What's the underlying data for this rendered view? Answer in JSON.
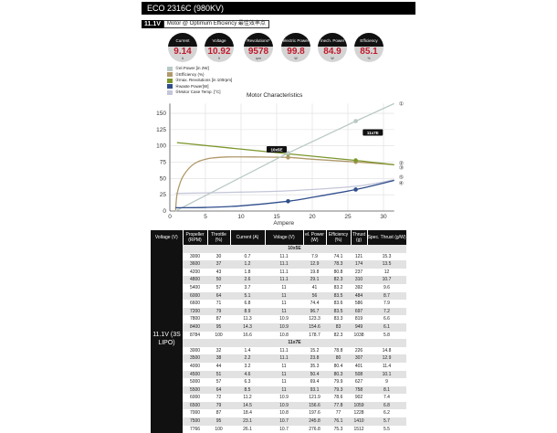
{
  "title": "ECO 2316C (980KV)",
  "subheader": {
    "voltage": "11.1V",
    "text": "Motor @ Optimum Efficiency  最佳效率点"
  },
  "gauges": [
    {
      "label": "Current",
      "value": "9.14",
      "unit": "A"
    },
    {
      "label": "Voltage",
      "value": "10.92",
      "unit": "V"
    },
    {
      "label": "Revolutions*",
      "value": "9578",
      "unit": "rpm"
    },
    {
      "label": "electric Power",
      "value": "99.8",
      "unit": "W"
    },
    {
      "label": "mech. Power",
      "value": "84.9",
      "unit": "W"
    },
    {
      "label": "Efficiency",
      "value": "85.1",
      "unit": "%"
    }
  ],
  "chart_data": {
    "type": "line",
    "title": "Motor Characteristics",
    "xlabel": "Ampere",
    "xlim": [
      0,
      31.5
    ],
    "ylim": [
      0,
      165
    ],
    "xticks": [
      0,
      5,
      10,
      15,
      20,
      25,
      30
    ],
    "yticks": [
      0,
      25,
      50,
      75,
      100,
      125,
      150
    ],
    "grid": true,
    "legend_position": "top-left",
    "series": [
      {
        "name": "①el.Power [in 2W]",
        "marker": "①",
        "color": "#b9c9c5",
        "x": [
          0.8,
          16.6,
          26.1,
          31.5
        ],
        "y": [
          0,
          89,
          138,
          165
        ],
        "mx": [
          16.6,
          26.1
        ],
        "my": [
          89,
          138
        ]
      },
      {
        "name": "②Efficiency (%)",
        "marker": "②",
        "color": "#b0996a",
        "x": [
          0.8,
          1,
          1.5,
          2,
          3,
          4,
          5,
          6,
          8,
          12,
          16.6,
          20,
          26.1,
          31.5
        ],
        "y": [
          0,
          25,
          45,
          56,
          69,
          76,
          79.5,
          81.5,
          83,
          83,
          82.3,
          79.5,
          75.3,
          71
        ],
        "mx": [
          16.6,
          26.1
        ],
        "my": [
          82.3,
          75.3
        ]
      },
      {
        "name": "③max. Revolutions [in 100rpm]",
        "marker": "③",
        "color": "#7c962c",
        "x": [
          1,
          16.6,
          26.1,
          31.5
        ],
        "y": [
          105,
          87.8,
          77.7,
          71
        ],
        "mx": [
          16.6,
          26.1
        ],
        "my": [
          87.8,
          77.7
        ]
      },
      {
        "name": "④waste Power[W]",
        "marker": "④",
        "color": "#2f4e8c",
        "x": [
          0.8,
          5,
          10,
          16.6,
          20,
          26.1,
          31.5
        ],
        "y": [
          5,
          5.5,
          8,
          15,
          21,
          33,
          47
        ],
        "mx": [
          16.6,
          26.1
        ],
        "my": [
          15,
          33
        ]
      },
      {
        "name": "⑤Motor Case Temp. [°C]",
        "marker": "⑤",
        "color": "#c4c6d8",
        "x": [
          0.8,
          10,
          16.6,
          26.1,
          31.5
        ],
        "y": [
          27,
          29,
          31,
          38,
          48
        ],
        "mx": [],
        "my": []
      }
    ],
    "annotations": [
      {
        "text": "10x5E",
        "x": 15,
        "y": 94
      },
      {
        "text": "11x7E",
        "x": 28.5,
        "y": 120
      }
    ]
  },
  "table": {
    "headers": [
      "Voltage (V)",
      "Propeller (RPM)",
      "Throttle (%)",
      "Current (A)",
      "Volage (V)",
      "el. Power (W)",
      "Efficiency (%)",
      "Thrust (g)",
      "Spec. Thrust (g/W)"
    ],
    "voltage": "11.1V (3S LIPO)",
    "groups": [
      {
        "name": "10x5E",
        "rows": [
          [
            "3000",
            "30",
            "0.7",
            "11.1",
            "7.9",
            "74.1",
            "121",
            "15.3"
          ],
          [
            "3600",
            "37",
            "1.2",
            "11.1",
            "12.9",
            "78.3",
            "174",
            "13.5"
          ],
          [
            "4200",
            "43",
            "1.8",
            "11.1",
            "19.8",
            "80.8",
            "237",
            "12"
          ],
          [
            "4800",
            "50",
            "2.6",
            "11.1",
            "29.1",
            "82.3",
            "310",
            "10.7"
          ],
          [
            "5400",
            "57",
            "3.7",
            "11",
            "41",
            "83.2",
            "392",
            "9.6"
          ],
          [
            "6000",
            "64",
            "5.1",
            "11",
            "56",
            "83.5",
            "484",
            "8.7"
          ],
          [
            "6600",
            "71",
            "6.8",
            "11",
            "74.4",
            "83.6",
            "586",
            "7.9"
          ],
          [
            "7200",
            "79",
            "8.9",
            "11",
            "96.7",
            "83.5",
            "697",
            "7.2"
          ],
          [
            "7800",
            "87",
            "11.3",
            "10.9",
            "123.3",
            "83.3",
            "819",
            "6.6"
          ],
          [
            "8400",
            "95",
            "14.3",
            "10.9",
            "154.6",
            "83",
            "949",
            "6.1"
          ],
          [
            "8784",
            "100",
            "16.6",
            "10.8",
            "178.7",
            "82.3",
            "1038",
            "5.8"
          ]
        ]
      },
      {
        "name": "11x7E",
        "rows": [
          [
            "3000",
            "32",
            "1.4",
            "11.1",
            "15.2",
            "78.8",
            "226",
            "14.8"
          ],
          [
            "3500",
            "38",
            "2.2",
            "11.1",
            "23.8",
            "80",
            "307",
            "12.9"
          ],
          [
            "4000",
            "44",
            "3.2",
            "11",
            "35.3",
            "80.4",
            "401",
            "11.4"
          ],
          [
            "4500",
            "51",
            "4.6",
            "11",
            "50.4",
            "80.3",
            "508",
            "10.1"
          ],
          [
            "5000",
            "57",
            "6.3",
            "11",
            "69.4",
            "79.9",
            "627",
            "9"
          ],
          [
            "5500",
            "64",
            "8.5",
            "11",
            "93.1",
            "79.3",
            "758",
            "8.1"
          ],
          [
            "6000",
            "72",
            "11.2",
            "10.9",
            "121.9",
            "78.6",
            "902",
            "7.4"
          ],
          [
            "6500",
            "79",
            "14.5",
            "10.9",
            "156.6",
            "77.8",
            "1059",
            "6.8"
          ],
          [
            "7000",
            "87",
            "18.4",
            "10.8",
            "197.6",
            "77",
            "1228",
            "6.2"
          ],
          [
            "7500",
            "95",
            "23.1",
            "10.7",
            "245.8",
            "76.1",
            "1410",
            "5.7"
          ],
          [
            "7766",
            "100",
            "26.1",
            "10.7",
            "276.8",
            "75.3",
            "1512",
            "5.5"
          ]
        ]
      }
    ]
  }
}
